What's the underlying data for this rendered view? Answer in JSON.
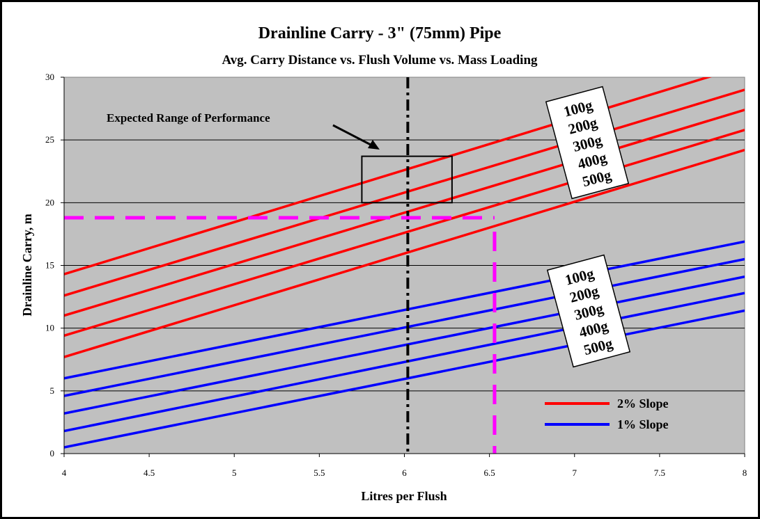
{
  "chart_data": {
    "type": "line",
    "title": "Drainline Carry - 3\" (75mm) Pipe",
    "subtitle": "Avg. Carry Distance vs. Flush Volume vs. Mass Loading",
    "xlabel": "Litres per Flush",
    "ylabel": "Drainline Carry, m",
    "xlim": [
      4,
      8
    ],
    "ylim": [
      0,
      30
    ],
    "xticks": [
      "4",
      "4.5",
      "5",
      "5.5",
      "6",
      "6.5",
      "7",
      "7.5",
      "8"
    ],
    "yticks": [
      "0",
      "5",
      "10",
      "15",
      "20",
      "25",
      "30"
    ],
    "grid": "horizontal",
    "plot_background": "#c0c0c0",
    "legend_position": "bottom-right",
    "series": [
      {
        "name": "2% Slope",
        "label": "100g",
        "color": "#ff0000",
        "x": [
          4,
          8
        ],
        "y": [
          14.3,
          30.9
        ]
      },
      {
        "name": "2% Slope",
        "label": "200g",
        "color": "#ff0000",
        "x": [
          4,
          8
        ],
        "y": [
          12.6,
          29.0
        ]
      },
      {
        "name": "2% Slope",
        "label": "300g",
        "color": "#ff0000",
        "x": [
          4,
          8
        ],
        "y": [
          11.0,
          27.4
        ]
      },
      {
        "name": "2% Slope",
        "label": "400g",
        "color": "#ff0000",
        "x": [
          4,
          8
        ],
        "y": [
          9.4,
          25.8
        ]
      },
      {
        "name": "2% Slope",
        "label": "500g",
        "color": "#ff0000",
        "x": [
          4,
          8
        ],
        "y": [
          7.7,
          24.2
        ]
      },
      {
        "name": "1% Slope",
        "label": "100g",
        "color": "#0000ff",
        "x": [
          4,
          8
        ],
        "y": [
          6.0,
          16.9
        ]
      },
      {
        "name": "1% Slope",
        "label": "200g",
        "color": "#0000ff",
        "x": [
          4,
          8
        ],
        "y": [
          4.6,
          15.5
        ]
      },
      {
        "name": "1% Slope",
        "label": "300g",
        "color": "#0000ff",
        "x": [
          4,
          8
        ],
        "y": [
          3.2,
          14.1
        ]
      },
      {
        "name": "1% Slope",
        "label": "400g",
        "color": "#0000ff",
        "x": [
          4,
          8
        ],
        "y": [
          1.8,
          12.8
        ]
      },
      {
        "name": "1% Slope",
        "label": "500g",
        "color": "#0000ff",
        "x": [
          4,
          8
        ],
        "y": [
          0.5,
          11.4
        ]
      }
    ],
    "mass_labels_2pct": [
      "100g",
      "200g",
      "300g",
      "400g",
      "500g"
    ],
    "mass_labels_1pct": [
      "100g",
      "200g",
      "300g",
      "400g",
      "500g"
    ],
    "reference_lines": {
      "vertical_black": {
        "x": 6.02,
        "color": "#000000",
        "style": "dash-dot"
      },
      "magenta_horizontal": {
        "y": 18.8,
        "x_from": 4,
        "x_to": 6.53,
        "color": "#ff00ff",
        "style": "dashed"
      },
      "magenta_vertical": {
        "x": 6.53,
        "y_from": 0,
        "y_to": 18.8,
        "color": "#ff00ff",
        "style": "dashed"
      }
    },
    "range_box": {
      "x": [
        5.75,
        6.28
      ],
      "y": [
        20.0,
        23.7
      ]
    },
    "annotation": {
      "text": "Expected Range of Performance",
      "arrow_to": {
        "x": 5.83,
        "y": 24.3
      }
    },
    "legend": [
      {
        "label": "2% Slope",
        "color": "#ff0000"
      },
      {
        "label": "1% Slope",
        "color": "#0000ff"
      }
    ]
  }
}
